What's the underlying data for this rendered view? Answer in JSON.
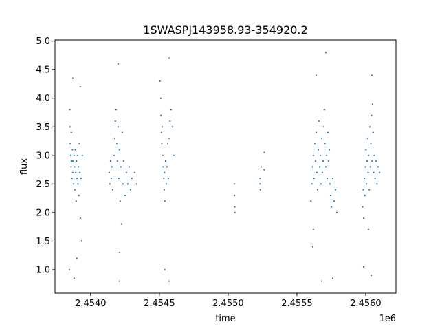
{
  "chart_data": {
    "type": "scatter",
    "title": "1SWASPJ143958.93-354920.2",
    "xlabel": "time",
    "ylabel": "flux",
    "x_offset_label": "1e6",
    "xlim": [
      2453741,
      2456220
    ],
    "ylim": [
      0.59,
      5.02
    ],
    "grid": false,
    "color": "#1f77b4",
    "x_ticks": [
      2454000,
      2454500,
      2455000,
      2455500,
      2456000
    ],
    "x_tick_labels": [
      "2.4540",
      "2.4545",
      "2.4550",
      "2.4555",
      "2.4560"
    ],
    "y_ticks": [
      1.0,
      1.5,
      2.0,
      2.5,
      3.0,
      3.5,
      4.0,
      4.5,
      5.0
    ],
    "y_tick_labels": [
      "1.0",
      "1.5",
      "2.0",
      "2.5",
      "3.0",
      "3.5",
      "4.0",
      "4.5",
      "5.0"
    ],
    "points": [
      [
        2453848,
        3.8
      ],
      [
        2453850,
        3.5
      ],
      [
        2453852,
        3.2
      ],
      [
        2453855,
        3.0
      ],
      [
        2453858,
        2.8
      ],
      [
        2453860,
        3.4
      ],
      [
        2453862,
        2.9
      ],
      [
        2453865,
        2.6
      ],
      [
        2453868,
        3.1
      ],
      [
        2453870,
        2.7
      ],
      [
        2453873,
        2.9
      ],
      [
        2453876,
        2.5
      ],
      [
        2453880,
        3.0
      ],
      [
        2453883,
        2.8
      ],
      [
        2453886,
        2.4
      ],
      [
        2453889,
        3.1
      ],
      [
        2453892,
        2.7
      ],
      [
        2453895,
        2.2
      ],
      [
        2453898,
        2.9
      ],
      [
        2453901,
        2.6
      ],
      [
        2453905,
        3.0
      ],
      [
        2453908,
        2.5
      ],
      [
        2453911,
        2.8
      ],
      [
        2453915,
        2.3
      ],
      [
        2453918,
        3.2
      ],
      [
        2453922,
        2.7
      ],
      [
        2453926,
        1.9
      ],
      [
        2453930,
        2.6
      ],
      [
        2453935,
        1.5
      ],
      [
        2453940,
        3.0
      ],
      [
        2453845,
        1.0
      ],
      [
        2453880,
        0.85
      ],
      [
        2453900,
        1.2
      ],
      [
        2453925,
        4.2
      ],
      [
        2453870,
        4.35
      ],
      [
        2454135,
        2.7
      ],
      [
        2454140,
        2.5
      ],
      [
        2454145,
        2.9
      ],
      [
        2454150,
        2.6
      ],
      [
        2454155,
        2.8
      ],
      [
        2454160,
        2.4
      ],
      [
        2454170,
        3.0
      ],
      [
        2454175,
        3.3
      ],
      [
        2454180,
        3.6
      ],
      [
        2454185,
        3.8
      ],
      [
        2454190,
        3.2
      ],
      [
        2454195,
        2.9
      ],
      [
        2454200,
        3.5
      ],
      [
        2454205,
        2.6
      ],
      [
        2454210,
        3.1
      ],
      [
        2454215,
        2.2
      ],
      [
        2454220,
        2.8
      ],
      [
        2454225,
        1.8
      ],
      [
        2454230,
        3.4
      ],
      [
        2454235,
        2.5
      ],
      [
        2454240,
        2.9
      ],
      [
        2454250,
        2.3
      ],
      [
        2454260,
        2.7
      ],
      [
        2454270,
        2.5
      ],
      [
        2454280,
        2.8
      ],
      [
        2454290,
        2.4
      ],
      [
        2454300,
        2.6
      ],
      [
        2454320,
        2.7
      ],
      [
        2454335,
        2.5
      ],
      [
        2454200,
        4.6
      ],
      [
        2454210,
        1.3
      ],
      [
        2454210,
        0.8
      ],
      [
        2454505,
        4.3
      ],
      [
        2454510,
        4.0
      ],
      [
        2454512,
        3.7
      ],
      [
        2454515,
        3.4
      ],
      [
        2454518,
        3.2
      ],
      [
        2454520,
        3.5
      ],
      [
        2454525,
        3.0
      ],
      [
        2454528,
        2.8
      ],
      [
        2454532,
        2.6
      ],
      [
        2454535,
        2.4
      ],
      [
        2454538,
        2.7
      ],
      [
        2454540,
        2.2
      ],
      [
        2454545,
        2.9
      ],
      [
        2454550,
        2.5
      ],
      [
        2454555,
        2.8
      ],
      [
        2454560,
        3.2
      ],
      [
        2454565,
        2.6
      ],
      [
        2454570,
        3.3
      ],
      [
        2454578,
        3.6
      ],
      [
        2454585,
        3.8
      ],
      [
        2454595,
        3.5
      ],
      [
        2454605,
        3.0
      ],
      [
        2454570,
        4.7
      ],
      [
        2454570,
        0.8
      ],
      [
        2454540,
        1.0
      ],
      [
        2455045,
        2.5
      ],
      [
        2455046,
        2.3
      ],
      [
        2455047,
        2.1
      ],
      [
        2455048,
        2.0
      ],
      [
        2455232,
        2.6
      ],
      [
        2455233,
        2.5
      ],
      [
        2455234,
        2.4
      ],
      [
        2455240,
        2.8
      ],
      [
        2455262,
        3.05
      ],
      [
        2455262,
        2.75
      ],
      [
        2455602,
        2.2
      ],
      [
        2455608,
        2.5
      ],
      [
        2455614,
        2.8
      ],
      [
        2455620,
        3.0
      ],
      [
        2455625,
        2.6
      ],
      [
        2455630,
        3.2
      ],
      [
        2455635,
        2.9
      ],
      [
        2455640,
        3.4
      ],
      [
        2455645,
        2.7
      ],
      [
        2455650,
        2.4
      ],
      [
        2455655,
        3.1
      ],
      [
        2455660,
        3.6
      ],
      [
        2455665,
        2.8
      ],
      [
        2455670,
        3.0
      ],
      [
        2455675,
        2.5
      ],
      [
        2455680,
        3.3
      ],
      [
        2455685,
        2.7
      ],
      [
        2455690,
        2.9
      ],
      [
        2455695,
        3.5
      ],
      [
        2455700,
        3.8
      ],
      [
        2455705,
        3.2
      ],
      [
        2455710,
        2.8
      ],
      [
        2455715,
        3.0
      ],
      [
        2455720,
        2.6
      ],
      [
        2455725,
        3.4
      ],
      [
        2455730,
        2.9
      ],
      [
        2455735,
        3.1
      ],
      [
        2455740,
        2.5
      ],
      [
        2455745,
        2.3
      ],
      [
        2455750,
        2.1
      ],
      [
        2455760,
        2.6
      ],
      [
        2455770,
        2.2
      ],
      [
        2455780,
        2.4
      ],
      [
        2455790,
        2.0
      ],
      [
        2455620,
        1.7
      ],
      [
        2455640,
        4.4
      ],
      [
        2455680,
        0.8
      ],
      [
        2455710,
        4.8
      ],
      [
        2455760,
        0.85
      ],
      [
        2455615,
        1.4
      ],
      [
        2455978,
        2.1
      ],
      [
        2455982,
        2.4
      ],
      [
        2455986,
        1.9
      ],
      [
        2455990,
        2.6
      ],
      [
        2455994,
        2.3
      ],
      [
        2455998,
        2.8
      ],
      [
        2456002,
        3.1
      ],
      [
        2456006,
        2.5
      ],
      [
        2456010,
        2.9
      ],
      [
        2456014,
        3.3
      ],
      [
        2456018,
        2.7
      ],
      [
        2456022,
        3.0
      ],
      [
        2456026,
        2.4
      ],
      [
        2456030,
        3.5
      ],
      [
        2456034,
        2.8
      ],
      [
        2456038,
        3.2
      ],
      [
        2456042,
        3.7
      ],
      [
        2456046,
        2.9
      ],
      [
        2456050,
        3.9
      ],
      [
        2456054,
        3.4
      ],
      [
        2456058,
        2.7
      ],
      [
        2456062,
        3.0
      ],
      [
        2456068,
        2.6
      ],
      [
        2456075,
        2.9
      ],
      [
        2456082,
        2.5
      ],
      [
        2456090,
        2.8
      ],
      [
        2456100,
        2.7
      ],
      [
        2456045,
        4.4
      ],
      [
        2455985,
        1.05
      ],
      [
        2456040,
        0.9
      ],
      [
        2456020,
        1.7
      ]
    ]
  }
}
